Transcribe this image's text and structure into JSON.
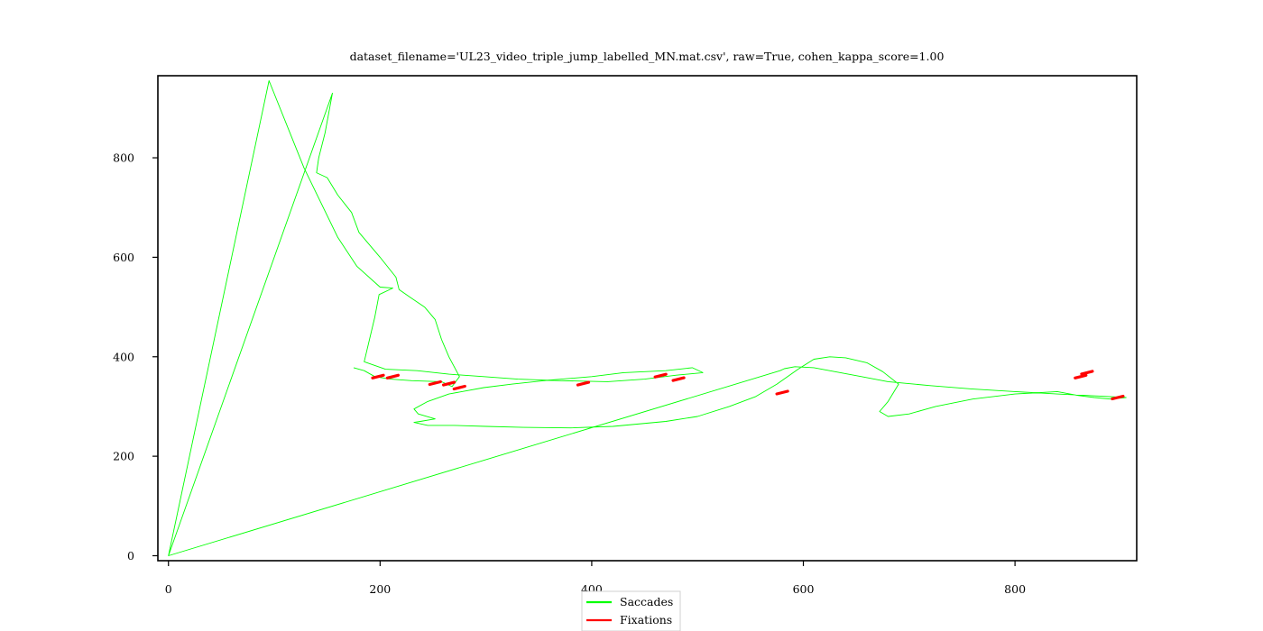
{
  "chart_data": {
    "type": "line",
    "title": "dataset_filename='UL23_video_triple_jump_labelled_MN.mat.csv', raw=True, cohen_kappa_score=1.00",
    "xlabel": "",
    "ylabel": "",
    "xlim": [
      -10,
      915
    ],
    "ylim": [
      -10,
      965
    ],
    "xticks": [
      "0",
      "200",
      "400",
      "600",
      "800"
    ],
    "yticks": [
      "0",
      "200",
      "400",
      "600",
      "800"
    ],
    "grid": false,
    "legend_position": "bottom-center",
    "series": [
      {
        "name": "Saccades",
        "color": "#00ff00",
        "x": [
          0,
          95,
          128,
          160,
          178,
          200,
          212,
          199,
          195,
          185,
          205,
          235,
          265,
          298,
          330,
          370,
          415,
          450,
          480,
          505,
          495,
          470,
          430,
          400,
          360,
          325,
          298,
          265,
          245,
          232,
          236,
          252,
          238,
          232,
          245,
          270,
          300,
          335,
          380,
          420,
          470,
          500,
          530,
          555,
          575,
          595,
          610,
          625,
          640,
          660,
          675,
          690,
          680,
          672,
          680,
          700,
          725,
          760,
          800,
          840,
          860,
          875,
          890,
          905,
          870,
          840,
          800,
          760,
          720,
          680,
          655,
          635,
          610,
          592,
          582,
          578,
          0,
          155,
          148,
          142,
          140,
          150,
          160,
          173,
          180,
          200,
          215,
          218,
          228,
          242,
          252,
          258,
          265,
          275,
          268,
          258,
          230,
          210,
          195,
          185,
          175
        ],
        "y": [
          0,
          955,
          780,
          640,
          582,
          540,
          538,
          525,
          480,
          390,
          375,
          372,
          365,
          360,
          355,
          352,
          350,
          355,
          363,
          368,
          378,
          372,
          368,
          360,
          353,
          345,
          338,
          325,
          310,
          295,
          285,
          275,
          270,
          268,
          262,
          262,
          260,
          258,
          257,
          260,
          270,
          280,
          300,
          320,
          345,
          375,
          395,
          400,
          398,
          388,
          370,
          345,
          310,
          290,
          280,
          285,
          300,
          315,
          325,
          330,
          322,
          318,
          315,
          318,
          322,
          325,
          330,
          335,
          342,
          350,
          360,
          368,
          378,
          380,
          376,
          372,
          0,
          930,
          850,
          800,
          770,
          760,
          725,
          690,
          650,
          600,
          560,
          535,
          520,
          500,
          475,
          435,
          400,
          360,
          340,
          350,
          352,
          355,
          360,
          372,
          378
        ]
      },
      {
        "name": "Fixations",
        "color": "#ff0000",
        "x": [
          198,
          212,
          252,
          265,
          275,
          392,
          465,
          482,
          580,
          868,
          862,
          897
        ],
        "y": [
          360,
          360,
          347,
          346,
          338,
          346,
          362,
          355,
          328,
          368,
          360,
          318
        ]
      }
    ]
  }
}
